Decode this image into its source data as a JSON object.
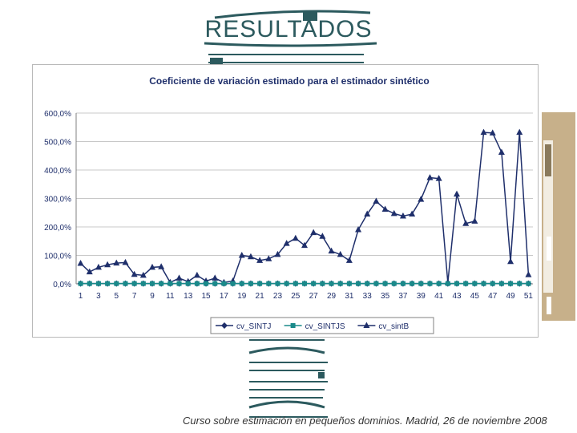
{
  "slide": {
    "title": "RESULTADOS",
    "footer": "Curso sobre estimación en pequeños dominios. Madrid, 26 de noviembre 2008",
    "accent_color": "#2c5a5e"
  },
  "chart_data": {
    "type": "line",
    "title": "Coeficiente de variación estimado para el estimador sintético",
    "xlabel": "",
    "ylabel": "",
    "x": [
      1,
      2,
      3,
      4,
      5,
      6,
      7,
      8,
      9,
      10,
      11,
      12,
      13,
      14,
      15,
      16,
      17,
      18,
      19,
      20,
      21,
      22,
      23,
      24,
      25,
      26,
      27,
      28,
      29,
      30,
      31,
      32,
      33,
      34,
      35,
      36,
      37,
      38,
      39,
      40,
      41,
      42,
      43,
      44,
      45,
      46,
      47,
      48,
      49,
      50,
      51
    ],
    "x_tick_labels": [
      "1",
      "3",
      "5",
      "7",
      "9",
      "11",
      "13",
      "15",
      "17",
      "19",
      "21",
      "23",
      "25",
      "27",
      "29",
      "31",
      "33",
      "35",
      "37",
      "39",
      "41",
      "43",
      "45",
      "47",
      "49",
      "51"
    ],
    "y_tick_labels": [
      "0,0%",
      "100,0%",
      "200,0%",
      "300,0%",
      "400,0%",
      "500,0%",
      "600,0%"
    ],
    "ylim": [
      0,
      600
    ],
    "grid": "horizontal",
    "legend_position": "bottom",
    "series": [
      {
        "name": "cv_SINTJ",
        "color": "#1f2f6b",
        "marker": "diamond",
        "values": [
          1,
          1,
          1,
          1,
          1,
          1,
          1,
          1,
          1,
          1,
          1,
          1,
          1,
          1,
          1,
          1,
          1,
          1,
          1,
          1,
          1,
          1,
          1,
          1,
          1,
          1,
          1,
          1,
          1,
          1,
          1,
          1,
          1,
          1,
          1,
          1,
          1,
          1,
          1,
          1,
          1,
          1,
          1,
          1,
          1,
          1,
          1,
          1,
          1,
          1,
          1
        ]
      },
      {
        "name": "cv_SINTJS",
        "color": "#1a8a8a",
        "marker": "square",
        "values": [
          1,
          1,
          1,
          1,
          1,
          1,
          1,
          1,
          1,
          1,
          1,
          1,
          1,
          1,
          1,
          1,
          1,
          1,
          1,
          1,
          1,
          1,
          1,
          1,
          1,
          1,
          1,
          1,
          1,
          1,
          1,
          1,
          1,
          1,
          1,
          1,
          1,
          1,
          1,
          1,
          1,
          1,
          1,
          1,
          1,
          1,
          1,
          1,
          1,
          1,
          1
        ]
      },
      {
        "name": "cv_sintB",
        "color": "#1f2f6b",
        "marker": "triangle",
        "values": [
          72,
          42,
          58,
          67,
          73,
          75,
          33,
          30,
          58,
          60,
          5,
          20,
          8,
          30,
          10,
          20,
          5,
          10,
          100,
          95,
          82,
          88,
          103,
          142,
          160,
          135,
          180,
          167,
          115,
          103,
          82,
          190,
          245,
          290,
          262,
          247,
          238,
          245,
          297,
          373,
          370,
          5,
          315,
          212,
          220,
          532,
          530,
          462,
          78,
          532,
          32
        ]
      }
    ]
  }
}
